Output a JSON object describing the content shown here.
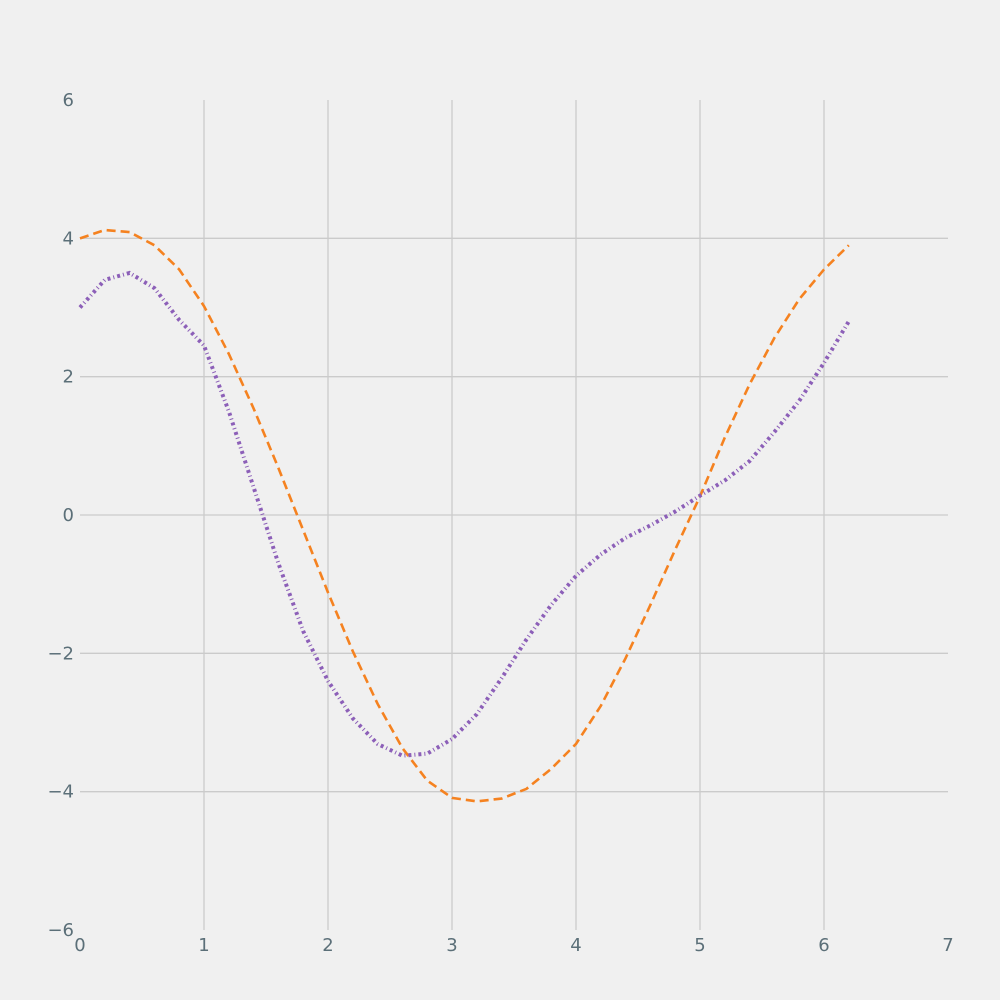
{
  "chart_data": {
    "type": "line",
    "title": "",
    "xlabel": "",
    "ylabel": "",
    "xlim": [
      0,
      7
    ],
    "ylim": [
      -6,
      6
    ],
    "x_ticks": [
      0,
      1,
      2,
      3,
      4,
      5,
      6,
      7
    ],
    "y_ticks": [
      -6,
      -4,
      -2,
      0,
      2,
      4,
      6
    ],
    "x_tick_labels": [
      "0",
      "1",
      "2",
      "3",
      "4",
      "5",
      "6",
      "7"
    ],
    "y_tick_labels": [
      "−6",
      "−4",
      "−2",
      "0",
      "2",
      "4",
      "6"
    ],
    "grid": true,
    "background": "#f0f0f0",
    "grid_color": "#cbcbcb",
    "tick_color": "#5b6f78",
    "series": [
      {
        "style": "dashed",
        "color": "#f58220",
        "x": [
          0,
          0.2,
          0.4,
          0.6,
          0.8,
          1.0,
          1.2,
          1.4,
          1.6,
          1.8,
          2.0,
          2.2,
          2.4,
          2.6,
          2.8,
          3.0,
          3.2,
          3.4,
          3.6,
          3.8,
          4.0,
          4.2,
          4.4,
          4.6,
          4.8,
          5.0,
          5.2,
          5.4,
          5.6,
          5.8,
          6.0,
          6.2
        ],
        "y": [
          4.0,
          4.12,
          4.09,
          3.9,
          3.55,
          3.02,
          2.33,
          1.54,
          0.68,
          -0.22,
          -1.12,
          -1.97,
          -2.73,
          -3.37,
          -3.84,
          -4.09,
          -4.14,
          -4.1,
          -3.96,
          -3.67,
          -3.31,
          -2.76,
          -2.07,
          -1.3,
          -0.5,
          0.27,
          1.12,
          1.89,
          2.56,
          3.12,
          3.55,
          3.9
        ]
      },
      {
        "style": "dash-dot",
        "color": "#8c5fb8",
        "x": [
          0,
          0.2,
          0.4,
          0.6,
          0.8,
          1.0,
          1.2,
          1.4,
          1.6,
          1.8,
          2.0,
          2.2,
          2.4,
          2.6,
          2.8,
          3.0,
          3.2,
          3.4,
          3.6,
          3.8,
          4.0,
          4.2,
          4.4,
          4.6,
          4.8,
          5.0,
          5.2,
          5.4,
          5.6,
          5.8,
          6.0,
          6.2
        ],
        "y": [
          3.0,
          3.4,
          3.5,
          3.28,
          2.82,
          2.45,
          1.5,
          0.4,
          -0.7,
          -1.68,
          -2.4,
          -2.94,
          -3.31,
          -3.48,
          -3.45,
          -3.24,
          -2.88,
          -2.36,
          -1.8,
          -1.3,
          -0.88,
          -0.57,
          -0.33,
          -0.15,
          0.05,
          0.28,
          0.5,
          0.78,
          1.2,
          1.65,
          2.2,
          2.8
        ]
      }
    ]
  }
}
